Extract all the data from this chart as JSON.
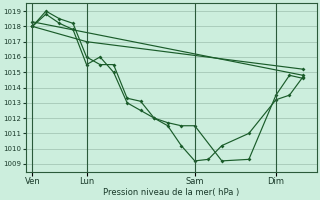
{
  "xlabel": "Pression niveau de la mer( hPa )",
  "background_color": "#cceedd",
  "grid_color": "#aaccbb",
  "line_color": "#1a5c2a",
  "ylim": [
    1008.5,
    1019.5
  ],
  "yticks": [
    1009,
    1010,
    1011,
    1012,
    1013,
    1014,
    1015,
    1016,
    1017,
    1018,
    1019
  ],
  "xtick_labels": [
    "Ven",
    "Lun",
    "Sam",
    "Dim"
  ],
  "xtick_positions": [
    0,
    4,
    12,
    18
  ],
  "xlim": [
    -0.5,
    21
  ],
  "vlines": [
    0,
    4,
    12,
    18
  ],
  "series": [
    {
      "x": [
        0,
        1,
        2,
        3,
        4,
        5,
        6,
        7,
        8,
        9,
        10,
        11,
        12,
        14,
        16,
        18,
        19,
        20
      ],
      "y": [
        1018.0,
        1019.0,
        1018.5,
        1018.2,
        1016.0,
        1015.5,
        1015.5,
        1013.3,
        1013.1,
        1012.0,
        1011.7,
        1011.5,
        1011.5,
        1009.2,
        1009.3,
        1013.5,
        1014.8,
        1014.6
      ]
    },
    {
      "x": [
        0,
        1,
        2,
        3,
        4,
        5,
        6,
        7,
        8,
        9,
        10,
        11,
        12,
        13,
        14,
        16,
        18,
        19,
        20
      ],
      "y": [
        1018.0,
        1018.8,
        1018.2,
        1017.8,
        1015.5,
        1016.0,
        1015.0,
        1013.0,
        1012.5,
        1012.0,
        1011.5,
        1010.2,
        1009.2,
        1009.3,
        1010.2,
        1011.0,
        1013.2,
        1013.5,
        1014.7
      ]
    },
    {
      "x": [
        0,
        4,
        20
      ],
      "y": [
        1018.0,
        1017.0,
        1015.2
      ]
    },
    {
      "x": [
        0,
        20
      ],
      "y": [
        1018.3,
        1014.8
      ]
    }
  ]
}
